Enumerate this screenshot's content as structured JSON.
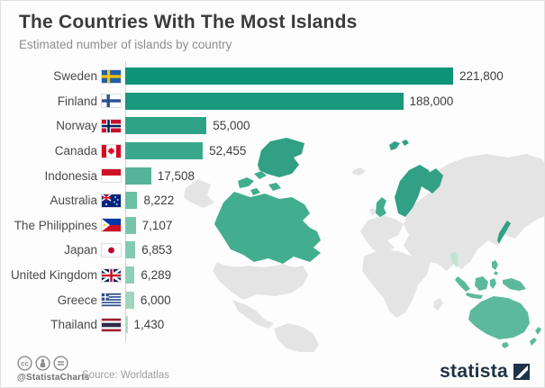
{
  "header": {
    "title": "The Countries With The Most Islands",
    "subtitle": "Estimated number of islands by country"
  },
  "chart_data": {
    "type": "bar",
    "orientation": "horizontal",
    "title": "The Countries With The Most Islands",
    "subtitle": "Estimated number of islands by country",
    "categories": [
      "Sweden",
      "Finland",
      "Norway",
      "Canada",
      "Indonesia",
      "Australia",
      "The Philippines",
      "Japan",
      "United Kingdom",
      "Greece",
      "Thailand"
    ],
    "values": [
      221800,
      188000,
      55000,
      52455,
      17508,
      8222,
      7107,
      6853,
      6289,
      6000,
      1430
    ],
    "value_labels": [
      "221,800",
      "188,000",
      "55,000",
      "52,455",
      "17,508",
      "8,222",
      "7,107",
      "6,853",
      "6,289",
      "6,000",
      "1,430"
    ],
    "flags": [
      "se",
      "fi",
      "no",
      "ca",
      "id",
      "au",
      "ph",
      "jp",
      "gb",
      "gr",
      "th"
    ],
    "bar_colors": [
      "#0e9376",
      "#18987c",
      "#2da287",
      "#3aa88d",
      "#56b399",
      "#6cbfa3",
      "#79c5aa",
      "#84cab0",
      "#90cfb7",
      "#9fd6bf",
      "#b0ddc9"
    ],
    "xlim": [
      0,
      221800
    ],
    "xlabel": "",
    "ylabel": "",
    "legend": false,
    "gridlines": false
  },
  "footer": {
    "handle": "@StatistaCharts",
    "source": "Source: Worldatlas",
    "license_icons": [
      "cc-icon",
      "attribution-icon",
      "no-derivatives-icon"
    ],
    "brand": "statista"
  },
  "colors": {
    "accent_dark": "#0e9376",
    "map_highlight_dark": "#31a085",
    "map_highlight": "#43ad8f",
    "map_highlight_light": "#5cb99c",
    "map_base": "#e4e4e4"
  }
}
